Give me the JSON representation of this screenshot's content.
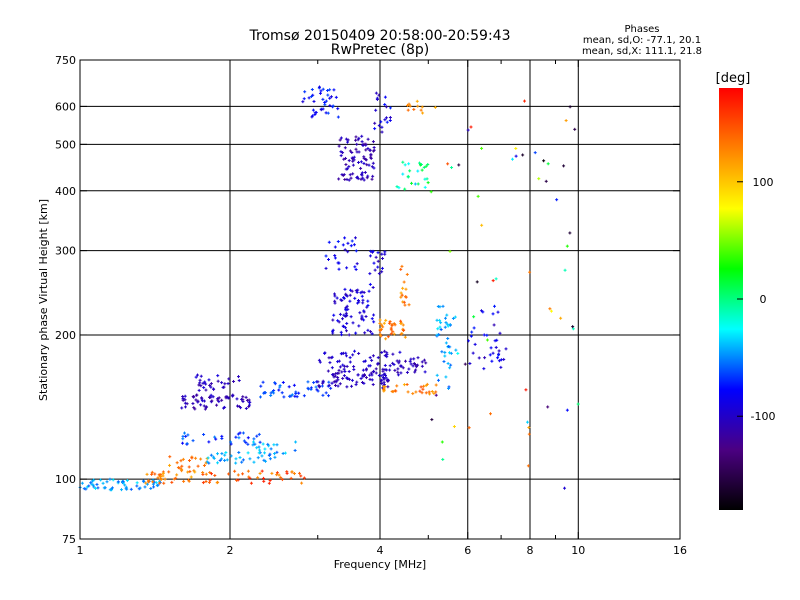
{
  "chart_data": {
    "type": "scatter",
    "title": "Tromsø 20150409 20:58:00-20:59:43",
    "subtitle": "RwPretec (8p)",
    "xlabel": "Frequency [MHz]",
    "ylabel": "Stationary phase Virtual Height [km]",
    "x_scale": "log",
    "y_scale": "log",
    "xlim": [
      1,
      16
    ],
    "ylim": [
      75,
      750
    ],
    "x_ticks": [
      1,
      2,
      4,
      6,
      8,
      10,
      16
    ],
    "x_grid": [
      2,
      4,
      6,
      8,
      10
    ],
    "x_minor": [
      3,
      5,
      7,
      9
    ],
    "y_ticks": [
      75,
      100,
      200,
      300,
      400,
      500,
      600,
      750
    ],
    "y_grid": [
      100,
      200,
      300,
      400,
      500,
      600
    ],
    "grid": true,
    "legend": {
      "title": "Phases",
      "lines": [
        "mean, sd,O: -77.1, 20.1",
        "mean, sd,X: 111.1, 21.8"
      ],
      "placement": "top-right"
    },
    "colorbar": {
      "label": "[deg]",
      "range": [
        -180,
        180
      ],
      "ticks": [
        -100,
        0,
        100
      ],
      "colors": [
        "#000000",
        "#4b0082",
        "#0000ff",
        "#00ffff",
        "#00ff00",
        "#ffff00",
        "#ff8000",
        "#ff0000"
      ]
    },
    "clusters": [
      {
        "x": [
          1.0,
          1.45
        ],
        "y": [
          95,
          100
        ],
        "phase": [
          -60,
          -30
        ],
        "n": 60
      },
      {
        "x": [
          1.35,
          1.75
        ],
        "y": [
          98,
          104
        ],
        "phase": [
          110,
          150
        ],
        "n": 30
      },
      {
        "x": [
          1.75,
          2.9
        ],
        "y": [
          98,
          104
        ],
        "phase": [
          120,
          170
        ],
        "n": 45
      },
      {
        "x": [
          1.5,
          1.8
        ],
        "y": [
          103,
          112
        ],
        "phase": [
          110,
          150
        ],
        "n": 25
      },
      {
        "x": [
          1.8,
          2.5
        ],
        "y": [
          108,
          114
        ],
        "phase": [
          -60,
          -30
        ],
        "n": 35
      },
      {
        "x": [
          1.6,
          2.3
        ],
        "y": [
          118,
          125
        ],
        "phase": [
          -80,
          -50
        ],
        "n": 30
      },
      {
        "x": [
          2.2,
          2.8
        ],
        "y": [
          113,
          120
        ],
        "phase": [
          -60,
          -30
        ],
        "n": 20
      },
      {
        "x": [
          1.6,
          2.2
        ],
        "y": [
          140,
          150
        ],
        "phase": [
          -120,
          -95
        ],
        "n": 70
      },
      {
        "x": [
          1.7,
          2.1
        ],
        "y": [
          153,
          165
        ],
        "phase": [
          -115,
          -90
        ],
        "n": 30
      },
      {
        "x": [
          2.3,
          3.2
        ],
        "y": [
          148,
          160
        ],
        "phase": [
          -80,
          -50
        ],
        "n": 50
      },
      {
        "x": [
          3.0,
          4.2
        ],
        "y": [
          155,
          170
        ],
        "phase": [
          -115,
          -95
        ],
        "n": 90
      },
      {
        "x": [
          4.0,
          5.2
        ],
        "y": [
          150,
          158
        ],
        "phase": [
          110,
          150
        ],
        "n": 30
      },
      {
        "x": [
          3.0,
          4.4
        ],
        "y": [
          170,
          185
        ],
        "phase": [
          -110,
          -90
        ],
        "n": 50
      },
      {
        "x": [
          4.2,
          5.0
        ],
        "y": [
          165,
          180
        ],
        "phase": [
          -115,
          -95
        ],
        "n": 30
      },
      {
        "x": [
          3.2,
          3.9
        ],
        "y": [
          200,
          250
        ],
        "phase": [
          -110,
          -80
        ],
        "n": 80
      },
      {
        "x": [
          3.9,
          4.5
        ],
        "y": [
          195,
          215
        ],
        "phase": [
          110,
          150
        ],
        "n": 35
      },
      {
        "x": [
          4.4,
          4.6
        ],
        "y": [
          230,
          280
        ],
        "phase": [
          110,
          150
        ],
        "n": 15
      },
      {
        "x": [
          5.2,
          5.7
        ],
        "y": [
          160,
          230
        ],
        "phase": [
          -60,
          -30
        ],
        "n": 40
      },
      {
        "x": [
          6.0,
          7.2
        ],
        "y": [
          170,
          230
        ],
        "phase": [
          -110,
          -70
        ],
        "n": 35
      },
      {
        "x": [
          3.1,
          3.6
        ],
        "y": [
          270,
          320
        ],
        "phase": [
          -100,
          -70
        ],
        "n": 25
      },
      {
        "x": [
          3.8,
          4.1
        ],
        "y": [
          250,
          300
        ],
        "phase": [
          -110,
          -80
        ],
        "n": 20
      },
      {
        "x": [
          3.3,
          3.9
        ],
        "y": [
          420,
          520
        ],
        "phase": [
          -120,
          -95
        ],
        "n": 90
      },
      {
        "x": [
          2.8,
          3.3
        ],
        "y": [
          570,
          660
        ],
        "phase": [
          -100,
          -60
        ],
        "n": 40
      },
      {
        "x": [
          3.9,
          4.2
        ],
        "y": [
          520,
          640
        ],
        "phase": [
          -110,
          -70
        ],
        "n": 20
      },
      {
        "x": [
          4.3,
          5.0
        ],
        "y": [
          400,
          460
        ],
        "phase": [
          -40,
          20
        ],
        "n": 25
      },
      {
        "x": [
          4.5,
          5.0
        ],
        "y": [
          580,
          620
        ],
        "phase": [
          100,
          140
        ],
        "n": 10
      },
      {
        "x": [
          5.0,
          10.0
        ],
        "y": [
          90,
          620
        ],
        "phase": [
          -180,
          180
        ],
        "n": 60
      }
    ]
  }
}
